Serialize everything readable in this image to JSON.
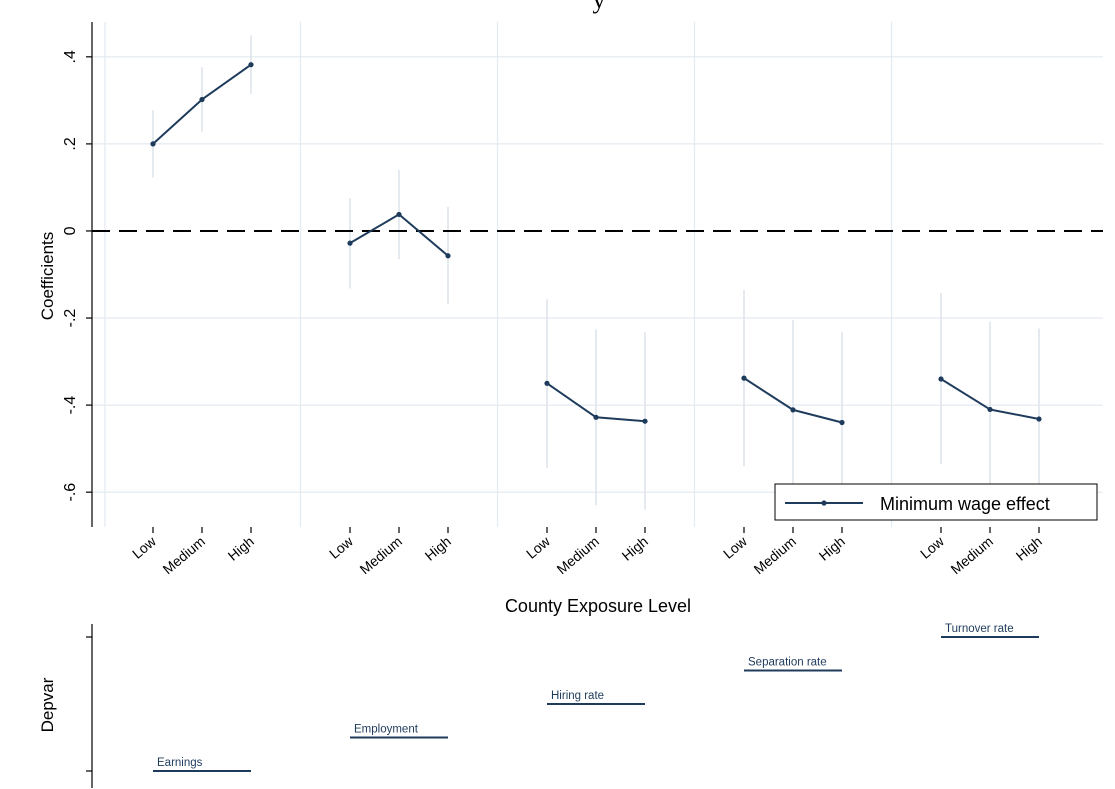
{
  "chart_data": {
    "type": "line",
    "title": "y",
    "ylabel": "Coefficients",
    "xlabel": "County Exposure Level",
    "ylim": [
      -0.68,
      0.48
    ],
    "yticks": [
      {
        "value": 0.4,
        "label": ".4"
      },
      {
        "value": 0.2,
        "label": ".2"
      },
      {
        "value": 0,
        "label": "0"
      },
      {
        "value": -0.2,
        "label": "-.2"
      },
      {
        "value": -0.4,
        "label": "-.4"
      },
      {
        "value": -0.6,
        "label": "-.6"
      }
    ],
    "exposure_levels": [
      "Low",
      "Medium",
      "High"
    ],
    "grid": true,
    "reference_line": {
      "y": 0,
      "style": "dashed"
    },
    "legend": {
      "label": "Minimum wage effect",
      "placement": "bottom-right"
    },
    "series_color": "#1f3b5c",
    "ci_color": "#dde5ec",
    "groups": [
      {
        "depvar": "Earnings",
        "points": [
          {
            "level": "Low",
            "y": 0.2,
            "lo": 0.123,
            "hi": 0.277
          },
          {
            "level": "Medium",
            "y": 0.302,
            "lo": 0.228,
            "hi": 0.376
          },
          {
            "level": "High",
            "y": 0.382,
            "lo": 0.315,
            "hi": 0.449
          }
        ]
      },
      {
        "depvar": "Employment",
        "points": [
          {
            "level": "Low",
            "y": -0.028,
            "lo": -0.132,
            "hi": 0.076
          },
          {
            "level": "Medium",
            "y": 0.038,
            "lo": -0.065,
            "hi": 0.14
          },
          {
            "level": "High",
            "y": -0.057,
            "lo": -0.167,
            "hi": 0.055
          }
        ]
      },
      {
        "depvar": "Hiring rate",
        "points": [
          {
            "level": "Low",
            "y": -0.35,
            "lo": -0.545,
            "hi": -0.157
          },
          {
            "level": "Medium",
            "y": -0.428,
            "lo": -0.63,
            "hi": -0.226
          },
          {
            "level": "High",
            "y": -0.437,
            "lo": -0.64,
            "hi": -0.232
          }
        ]
      },
      {
        "depvar": "Separation rate",
        "points": [
          {
            "level": "Low",
            "y": -0.338,
            "lo": -0.54,
            "hi": -0.135
          },
          {
            "level": "Medium",
            "y": -0.411,
            "lo": -0.62,
            "hi": -0.205
          },
          {
            "level": "High",
            "y": -0.44,
            "lo": -0.645,
            "hi": -0.232
          }
        ]
      },
      {
        "depvar": "Turnover rate",
        "points": [
          {
            "level": "Low",
            "y": -0.34,
            "lo": -0.535,
            "hi": -0.142
          },
          {
            "level": "Medium",
            "y": -0.41,
            "lo": -0.615,
            "hi": -0.208
          },
          {
            "level": "High",
            "y": -0.432,
            "lo": -0.64,
            "hi": -0.224
          }
        ]
      }
    ],
    "depvar_panel": {
      "ylabel": "Depvar"
    }
  }
}
